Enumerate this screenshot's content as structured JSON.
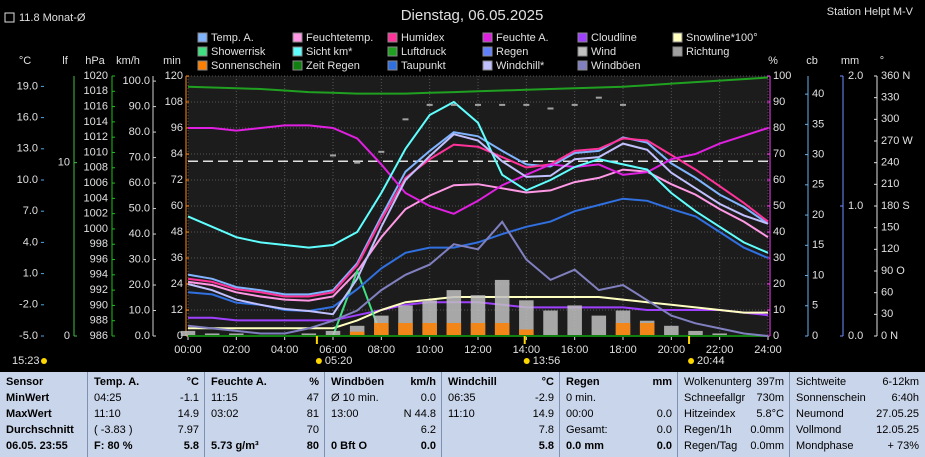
{
  "chart_data": {
    "type": "line",
    "title": "Dienstag, 06.05.2025",
    "station": "Station Helpt M-V",
    "month_avg": {
      "value": 11.8,
      "label": "11.8 Monat-Ø",
      "axis": "c",
      "color": "#e0e0e0"
    },
    "moon_time": "15:23",
    "sun_times": [
      "05:20",
      "13:56",
      "20:44"
    ],
    "xlim": [
      0,
      24
    ],
    "xticks": [
      {
        "value": 0,
        "label": "00:00"
      },
      {
        "value": 2,
        "label": "02:00"
      },
      {
        "value": 4,
        "label": "04:00"
      },
      {
        "value": 6,
        "label": "06:00"
      },
      {
        "value": 8,
        "label": "08:00"
      },
      {
        "value": 10,
        "label": "10:00"
      },
      {
        "value": 12,
        "label": "12:00"
      },
      {
        "value": 14,
        "label": "14:00"
      },
      {
        "value": 16,
        "label": "16:00"
      },
      {
        "value": 18,
        "label": "18:00"
      },
      {
        "value": 20,
        "label": "20:00"
      },
      {
        "value": 22,
        "label": "22:00"
      },
      {
        "value": 24,
        "label": "24:00"
      }
    ],
    "grid": true,
    "grid_axis": "min",
    "y_axes": [
      {
        "id": "c",
        "label": "°C",
        "color": "#4aa8e8",
        "ylim": [
          -5,
          20
        ],
        "yticks": [
          {
            "value": -5,
            "label": "-5.0"
          },
          {
            "value": -2,
            "label": "-2.0"
          },
          {
            "value": 1,
            "label": "1.0"
          },
          {
            "value": 4,
            "label": "4.0"
          },
          {
            "value": 7,
            "label": "7.0"
          },
          {
            "value": 10,
            "label": "10.0"
          },
          {
            "value": 13,
            "label": "13.0"
          },
          {
            "value": 16,
            "label": "16.0"
          },
          {
            "value": 19,
            "label": "19.0"
          }
        ]
      },
      {
        "id": "lf",
        "label": "lf",
        "color": "#40c040",
        "ylim": [
          0,
          15
        ],
        "yticks": [
          0,
          10
        ]
      },
      {
        "id": "hpa",
        "label": "hPa",
        "color": "#20c020",
        "ylim": [
          986,
          1020
        ],
        "yticks": [
          986,
          988,
          990,
          992,
          994,
          996,
          998,
          1000,
          1002,
          1004,
          1006,
          1008,
          1010,
          1012,
          1014,
          1016,
          1018,
          1020
        ]
      },
      {
        "id": "kmh",
        "label": "km/h",
        "color": "#d0d0d0",
        "ylim": [
          0,
          102
        ],
        "yticks": [
          {
            "value": 0,
            "label": "0.0"
          },
          {
            "value": 10,
            "label": "10.0"
          },
          {
            "value": 20,
            "label": "20.0"
          },
          {
            "value": 30,
            "label": "30.0"
          },
          {
            "value": 40,
            "label": "40.0"
          },
          {
            "value": 50,
            "label": "50.0"
          },
          {
            "value": 60,
            "label": "60.0"
          },
          {
            "value": 70,
            "label": "70.0"
          },
          {
            "value": 80,
            "label": "80.0"
          },
          {
            "value": 90,
            "label": "90.0"
          },
          {
            "value": 100,
            "label": "100.0"
          }
        ]
      },
      {
        "id": "min",
        "label": "min",
        "color": "#ff8c1a",
        "ylim": [
          0,
          120
        ],
        "yticks": [
          0,
          12,
          24,
          36,
          48,
          60,
          72,
          84,
          96,
          108,
          120
        ]
      },
      {
        "id": "pct",
        "label": "%",
        "color": "#ff40ff",
        "ylim": [
          0,
          100
        ],
        "yticks": [
          0,
          10,
          20,
          30,
          40,
          50,
          60,
          70,
          80,
          90,
          100
        ]
      },
      {
        "id": "cb",
        "label": "cb",
        "color": "#6ab0e8",
        "ylim": [
          0,
          43
        ],
        "yticks": [
          0,
          5,
          10,
          15,
          20,
          25,
          30,
          35,
          40
        ]
      },
      {
        "id": "mm",
        "label": "mm",
        "color": "#7090ff",
        "ylim": [
          0,
          2
        ],
        "yticks": [
          {
            "value": 0,
            "label": "0.0"
          },
          {
            "value": 1,
            "label": "1.0"
          },
          {
            "value": 2,
            "label": "2.0"
          }
        ]
      },
      {
        "id": "deg",
        "label": "°",
        "color": "#e0e0e0",
        "ylim": [
          0,
          360
        ],
        "yticks": [
          {
            "value": 0,
            "label": "0 N"
          },
          30,
          60,
          {
            "value": 90,
            "label": "90 O"
          },
          120,
          150,
          {
            "value": 180,
            "label": "180 S"
          },
          210,
          240,
          {
            "value": 270,
            "label": "270 W"
          },
          300,
          330,
          {
            "value": 360,
            "label": "360 N"
          }
        ]
      }
    ],
    "x": [
      0,
      1,
      2,
      3,
      4,
      5,
      6,
      7,
      8,
      9,
      10,
      11,
      12,
      13,
      14,
      15,
      16,
      17,
      18,
      19,
      20,
      21,
      22,
      23,
      24
    ],
    "series": [
      {
        "name": "Temp. A.",
        "color": "#80b4ff",
        "axis": "c",
        "style": "line",
        "values": [
          0.9,
          0.5,
          -0.3,
          -0.6,
          -1.0,
          -1.0,
          -0.6,
          2.0,
          6.5,
          10.8,
          12.8,
          14.6,
          14.2,
          12.8,
          11.5,
          11.3,
          12.6,
          12.8,
          14.1,
          13.6,
          11.6,
          10.2,
          8.6,
          7.4,
          5.8
        ]
      },
      {
        "name": "Feuchtetemp.",
        "color": "#ff99e6",
        "axis": "c",
        "style": "line",
        "values": [
          0.2,
          -0.1,
          -0.8,
          -1.2,
          -1.5,
          -1.6,
          -1.2,
          1.2,
          4.5,
          7.2,
          8.5,
          9.5,
          9.6,
          9.2,
          8.8,
          9.0,
          9.8,
          10.2,
          11.0,
          10.8,
          9.6,
          8.6,
          7.2,
          6.0,
          4.5
        ]
      },
      {
        "name": "Humidex",
        "color": "#ff3399",
        "axis": "c",
        "style": "line",
        "values": [
          0.5,
          0.2,
          -0.5,
          -0.8,
          -1.2,
          -1.2,
          -0.8,
          1.8,
          6.2,
          10.2,
          12.0,
          13.4,
          13.2,
          12.2,
          11.2,
          11.5,
          12.8,
          13.0,
          14.0,
          13.8,
          12.4,
          11.0,
          9.4,
          7.8,
          6.0
        ]
      },
      {
        "name": "Feuchte A.",
        "color": "#e020e0",
        "axis": "pct",
        "style": "line",
        "values": [
          80,
          80,
          79,
          80,
          81,
          81,
          80,
          76,
          66,
          55,
          50,
          47,
          52,
          58,
          62,
          66,
          65,
          66,
          62,
          63,
          68,
          70,
          74,
          77,
          80
        ]
      },
      {
        "name": "Cloudline",
        "color": "#a040ff",
        "axis": "pct",
        "style": "line",
        "values": [
          7,
          7,
          6,
          6,
          6,
          6,
          6,
          8,
          10,
          12,
          13,
          13,
          13,
          12,
          11,
          11,
          11,
          11,
          11,
          10,
          10,
          10,
          10,
          9,
          8
        ]
      },
      {
        "name": "Snowline*100°",
        "color": "#ffffc0",
        "axis": "pct",
        "style": "line",
        "values": [
          3,
          3,
          3,
          3,
          3,
          3,
          3,
          6,
          10,
          13,
          14,
          15,
          15,
          15,
          15,
          15,
          15,
          15,
          14,
          13,
          12,
          11,
          10,
          9,
          9
        ]
      },
      {
        "name": "Showerrisk",
        "color": "#40e080",
        "axis": "min",
        "style": "line",
        "values": [
          0,
          0,
          0,
          0,
          0,
          0,
          0,
          30,
          0,
          0,
          0,
          0,
          0,
          0,
          0,
          0,
          0,
          0,
          0,
          0,
          0,
          0,
          0,
          0,
          0
        ]
      },
      {
        "name": "Sicht km*",
        "color": "#60ffff",
        "axis": "pct",
        "style": "line",
        "values": [
          46,
          42,
          38,
          36,
          35,
          34,
          35,
          40,
          55,
          72,
          85,
          90,
          82,
          62,
          56,
          60,
          65,
          68,
          66,
          64,
          55,
          48,
          42,
          36,
          32
        ]
      },
      {
        "name": "Luftdruck",
        "color": "#20a020",
        "axis": "hpa",
        "style": "line",
        "values": [
          1018.6,
          1018.5,
          1018.4,
          1018.3,
          1018.1,
          1017.9,
          1017.8,
          1017.7,
          1017.7,
          1017.7,
          1017.8,
          1017.9,
          1018.0,
          1018.1,
          1018.2,
          1018.3,
          1018.4,
          1018.5,
          1018.6,
          1018.8,
          1019.0,
          1019.2,
          1019.4,
          1019.6,
          1019.8
        ]
      },
      {
        "name": "Regen",
        "color": "#6080ff",
        "axis": "mm",
        "style": "line",
        "values": [
          0,
          0,
          0,
          0,
          0,
          0,
          0,
          0,
          0,
          0,
          0,
          0,
          0,
          0,
          0,
          0,
          0,
          0,
          0,
          0,
          0,
          0,
          0,
          0,
          0
        ]
      },
      {
        "name": "Wind",
        "color": "#c0c0c0",
        "axis": "kmh",
        "style": "bar",
        "values": [
          2,
          1,
          1,
          0,
          0,
          1,
          2,
          4,
          8,
          12,
          14,
          18,
          16,
          22,
          14,
          10,
          12,
          8,
          10,
          6,
          4,
          2,
          1,
          0,
          0
        ]
      },
      {
        "name": "Richtung",
        "color": "#a0a0a0",
        "axis": "deg",
        "style": "dots",
        "values": [
          null,
          null,
          null,
          null,
          null,
          null,
          250,
          240,
          255,
          300,
          320,
          320,
          320,
          320,
          320,
          315,
          320,
          330,
          320,
          null,
          null,
          null,
          null,
          null,
          null
        ]
      },
      {
        "name": "Sonnenschein",
        "color": "#ff8000",
        "axis": "min",
        "style": "bar",
        "values": [
          0,
          0,
          0,
          0,
          0,
          0,
          0,
          2,
          6,
          6,
          6,
          6,
          6,
          6,
          3,
          0,
          0,
          0,
          6,
          6,
          0,
          0,
          0,
          0,
          0
        ]
      },
      {
        "name": "Zeit Regen",
        "color": "#108010",
        "axis": "min",
        "style": "line",
        "values": [
          0,
          0,
          0,
          0,
          0,
          0,
          0,
          0,
          0,
          0,
          0,
          0,
          0,
          0,
          0,
          0,
          0,
          0,
          0,
          0,
          0,
          0,
          0,
          0,
          0
        ]
      },
      {
        "name": "Taupunkt",
        "color": "#3070e0",
        "axis": "c",
        "style": "line",
        "values": [
          -0.8,
          -1.0,
          -1.8,
          -2.0,
          -2.5,
          -2.6,
          -2.2,
          -0.5,
          1.5,
          3.0,
          3.5,
          3.5,
          4.0,
          4.8,
          5.5,
          6.0,
          7.0,
          7.6,
          8.2,
          8.0,
          7.2,
          6.5,
          5.0,
          3.5,
          2.5
        ]
      },
      {
        "name": "Windchill*",
        "color": "#c0c0ff",
        "axis": "c",
        "style": "line",
        "values": [
          0.0,
          -0.6,
          -1.5,
          -2.0,
          -2.4,
          -2.6,
          -2.9,
          0.5,
          5.5,
          10.0,
          12.3,
          14.4,
          13.8,
          11.8,
          10.3,
          10.4,
          12.0,
          12.2,
          13.5,
          12.9,
          10.7,
          9.2,
          7.7,
          6.6,
          5.8
        ]
      },
      {
        "name": "Windböen",
        "color": "#8080c0",
        "axis": "kmh",
        "style": "line",
        "values": [
          4,
          3,
          2,
          1,
          1,
          3,
          6,
          10,
          18,
          24,
          28,
          36,
          34,
          44.8,
          30,
          22,
          26,
          18,
          20,
          14,
          8,
          5,
          3,
          1,
          0
        ]
      }
    ]
  },
  "table": {
    "columns": [
      {
        "header": [
          "Sensor",
          null
        ],
        "rows": [
          [
            "MinWert",
            null
          ],
          [
            "MaxWert",
            null
          ],
          [
            "Durchschnitt",
            null
          ],
          [
            "06.05. 23:55",
            null
          ]
        ]
      },
      {
        "header": [
          "Temp. A.",
          "°C"
        ],
        "rows": [
          [
            "04:25",
            "-1.1"
          ],
          [
            "11:10",
            "14.9"
          ],
          [
            "( -3.83 )",
            "7.97"
          ],
          [
            "F: 80 %",
            "5.8"
          ]
        ]
      },
      {
        "header": [
          "Feuchte A.",
          "%"
        ],
        "rows": [
          [
            "11:15",
            "47"
          ],
          [
            "03:02",
            "81"
          ],
          [
            null,
            "70"
          ],
          [
            "5.73 g/m³",
            "80"
          ]
        ]
      },
      {
        "header": [
          "Windböen",
          "km/h"
        ],
        "rows": [
          [
            "Ø 10 min.",
            "0.0"
          ],
          [
            "13:00",
            "N 44.8"
          ],
          [
            null,
            "6.2"
          ],
          [
            "0 Bft O",
            "0.0"
          ]
        ]
      },
      {
        "header": [
          "Windchill",
          "°C"
        ],
        "rows": [
          [
            "06:35",
            "-2.9"
          ],
          [
            "11:10",
            "14.9"
          ],
          [
            null,
            "7.8"
          ],
          [
            null,
            "5.8"
          ]
        ]
      },
      {
        "header": [
          "Regen",
          "mm"
        ],
        "rows": [
          [
            "0 min.",
            null
          ],
          [
            "00:00",
            "0.0"
          ],
          [
            "Gesamt:",
            "0.0"
          ],
          [
            "0.0 mm",
            "0.0"
          ]
        ]
      },
      {
        "header": null,
        "rows": [
          [
            "Wolkenunterg",
            "397m"
          ],
          [
            "Schneefallgr",
            "730m"
          ],
          [
            "Hitzeindex",
            "5.8°C"
          ],
          [
            "Regen/1h",
            "0.0mm"
          ],
          [
            "Regen/Tag",
            "0.0mm"
          ]
        ]
      },
      {
        "header": null,
        "rows": [
          [
            "Sichtweite",
            "6-12km"
          ],
          [
            "Sonnenschein",
            "6:40h"
          ],
          [
            "Neumond",
            "27.05.25"
          ],
          [
            "Vollmond",
            "12.05.25"
          ],
          [
            "Mondphase",
            "+ 73%"
          ]
        ]
      }
    ]
  }
}
